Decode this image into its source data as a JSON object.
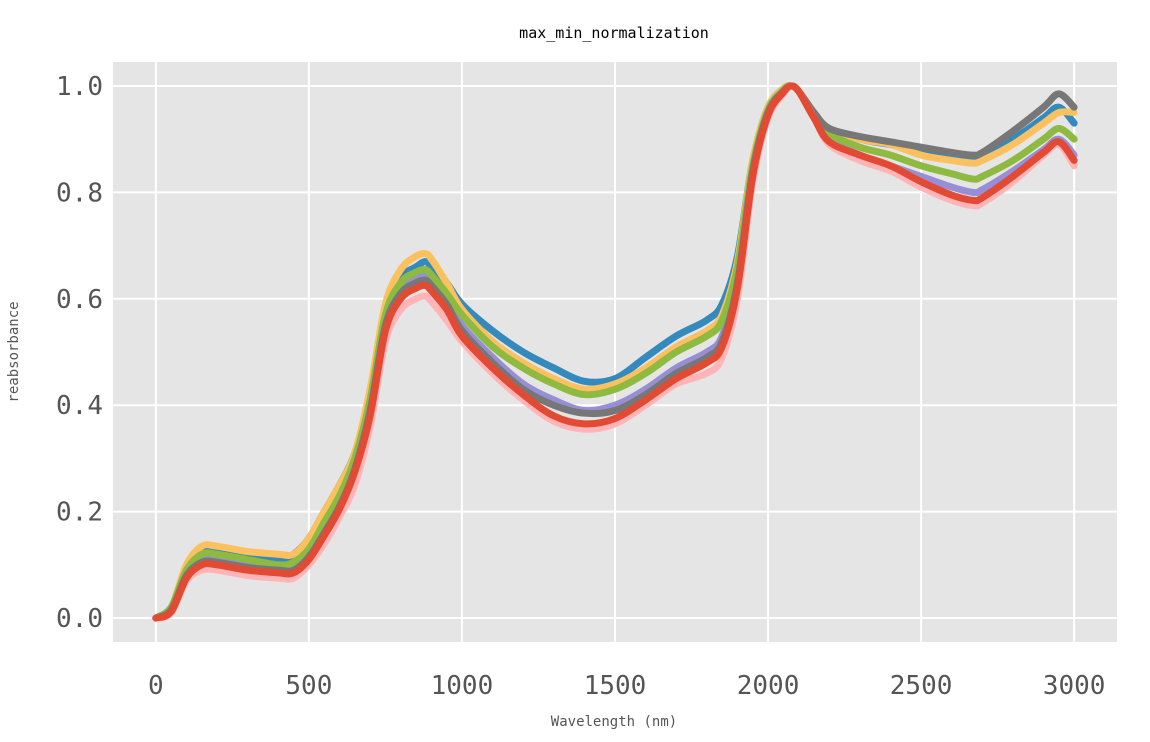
{
  "chart_data": {
    "type": "line",
    "title": "max_min_normalization",
    "xlabel": "Wavelength (nm)",
    "ylabel": "reabsorbance",
    "xlim": [
      -140,
      3140
    ],
    "ylim": [
      -0.045,
      1.045
    ],
    "grid": true,
    "x_ticks": [
      0,
      500,
      1000,
      1500,
      2000,
      2500,
      3000
    ],
    "x_tick_labels": [
      "0",
      "500",
      "1000",
      "1500",
      "2000",
      "2500",
      "3000"
    ],
    "y_ticks": [
      0.0,
      0.2,
      0.4,
      0.6,
      0.8,
      1.0
    ],
    "y_tick_labels": [
      "0.0",
      "0.2",
      "0.4",
      "0.6",
      "0.8",
      "1.0"
    ],
    "colors": {
      "background": "#e5e5e5",
      "grid": "#ffffff",
      "palette": [
        "#348abd",
        "#fbc15e",
        "#988ed5",
        "#8eba42",
        "#777777",
        "#ffb5b8",
        "#e24a33"
      ]
    },
    "x": [
      0,
      50,
      100,
      150,
      200,
      300,
      400,
      450,
      500,
      550,
      600,
      650,
      700,
      750,
      800,
      850,
      880,
      900,
      950,
      1000,
      1100,
      1200,
      1300,
      1400,
      1500,
      1600,
      1700,
      1800,
      1850,
      1900,
      1950,
      2000,
      2050,
      2075,
      2100,
      2150,
      2200,
      2300,
      2400,
      2500,
      2600,
      2670,
      2700,
      2800,
      2900,
      2950,
      3000
    ],
    "series": [
      {
        "values": [
          0.0,
          0.02,
          0.09,
          0.13,
          0.13,
          0.12,
          0.11,
          0.12,
          0.15,
          0.2,
          0.25,
          0.31,
          0.42,
          0.58,
          0.64,
          0.66,
          0.67,
          0.66,
          0.63,
          0.59,
          0.54,
          0.5,
          0.47,
          0.445,
          0.45,
          0.49,
          0.53,
          0.56,
          0.59,
          0.68,
          0.86,
          0.96,
          0.995,
          1.0,
          0.99,
          0.95,
          0.92,
          0.9,
          0.89,
          0.88,
          0.87,
          0.865,
          0.87,
          0.9,
          0.94,
          0.96,
          0.93
        ]
      },
      {
        "values": [
          0.0,
          0.02,
          0.1,
          0.135,
          0.135,
          0.125,
          0.12,
          0.12,
          0.15,
          0.2,
          0.25,
          0.31,
          0.43,
          0.59,
          0.655,
          0.68,
          0.685,
          0.675,
          0.63,
          0.58,
          0.52,
          0.48,
          0.45,
          0.43,
          0.44,
          0.47,
          0.51,
          0.54,
          0.57,
          0.67,
          0.86,
          0.96,
          0.995,
          1.0,
          0.99,
          0.95,
          0.92,
          0.9,
          0.89,
          0.87,
          0.86,
          0.855,
          0.86,
          0.89,
          0.93,
          0.95,
          0.95
        ]
      },
      {
        "values": [
          0.0,
          0.015,
          0.08,
          0.11,
          0.11,
          0.1,
          0.09,
          0.095,
          0.12,
          0.17,
          0.22,
          0.29,
          0.4,
          0.56,
          0.62,
          0.64,
          0.645,
          0.64,
          0.6,
          0.55,
          0.49,
          0.44,
          0.41,
          0.39,
          0.4,
          0.43,
          0.47,
          0.5,
          0.53,
          0.64,
          0.84,
          0.95,
          0.99,
          1.0,
          0.99,
          0.94,
          0.9,
          0.87,
          0.85,
          0.83,
          0.81,
          0.8,
          0.805,
          0.84,
          0.88,
          0.9,
          0.87
        ]
      },
      {
        "values": [
          0.0,
          0.02,
          0.09,
          0.12,
          0.12,
          0.11,
          0.1,
          0.105,
          0.13,
          0.18,
          0.23,
          0.3,
          0.41,
          0.57,
          0.63,
          0.65,
          0.655,
          0.645,
          0.61,
          0.57,
          0.51,
          0.47,
          0.44,
          0.42,
          0.43,
          0.46,
          0.5,
          0.53,
          0.56,
          0.66,
          0.85,
          0.955,
          0.992,
          1.0,
          0.99,
          0.945,
          0.91,
          0.885,
          0.87,
          0.85,
          0.835,
          0.825,
          0.83,
          0.86,
          0.9,
          0.92,
          0.9
        ]
      },
      {
        "values": [
          0.0,
          0.015,
          0.08,
          0.105,
          0.105,
          0.095,
          0.09,
          0.09,
          0.115,
          0.16,
          0.21,
          0.28,
          0.39,
          0.55,
          0.61,
          0.63,
          0.635,
          0.625,
          0.59,
          0.54,
          0.48,
          0.43,
          0.4,
          0.385,
          0.39,
          0.42,
          0.46,
          0.49,
          0.52,
          0.63,
          0.84,
          0.95,
          0.99,
          1.0,
          0.99,
          0.95,
          0.92,
          0.905,
          0.895,
          0.885,
          0.875,
          0.87,
          0.875,
          0.915,
          0.96,
          0.985,
          0.96
        ]
      },
      {
        "values": [
          0.0,
          0.01,
          0.07,
          0.09,
          0.09,
          0.08,
          0.075,
          0.075,
          0.1,
          0.14,
          0.19,
          0.25,
          0.36,
          0.52,
          0.58,
          0.6,
          0.605,
          0.595,
          0.56,
          0.52,
          0.46,
          0.41,
          0.37,
          0.355,
          0.365,
          0.4,
          0.44,
          0.46,
          0.49,
          0.6,
          0.82,
          0.94,
          0.985,
          1.0,
          0.99,
          0.94,
          0.89,
          0.86,
          0.84,
          0.81,
          0.785,
          0.775,
          0.78,
          0.82,
          0.87,
          0.89,
          0.85
        ]
      },
      {
        "values": [
          0.0,
          0.012,
          0.075,
          0.1,
          0.1,
          0.09,
          0.085,
          0.085,
          0.11,
          0.155,
          0.205,
          0.275,
          0.38,
          0.54,
          0.6,
          0.62,
          0.625,
          0.615,
          0.58,
          0.53,
          0.47,
          0.42,
          0.38,
          0.365,
          0.375,
          0.41,
          0.45,
          0.48,
          0.51,
          0.62,
          0.83,
          0.945,
          0.988,
          1.0,
          0.99,
          0.94,
          0.895,
          0.87,
          0.85,
          0.82,
          0.795,
          0.785,
          0.79,
          0.83,
          0.875,
          0.895,
          0.86
        ]
      }
    ]
  }
}
